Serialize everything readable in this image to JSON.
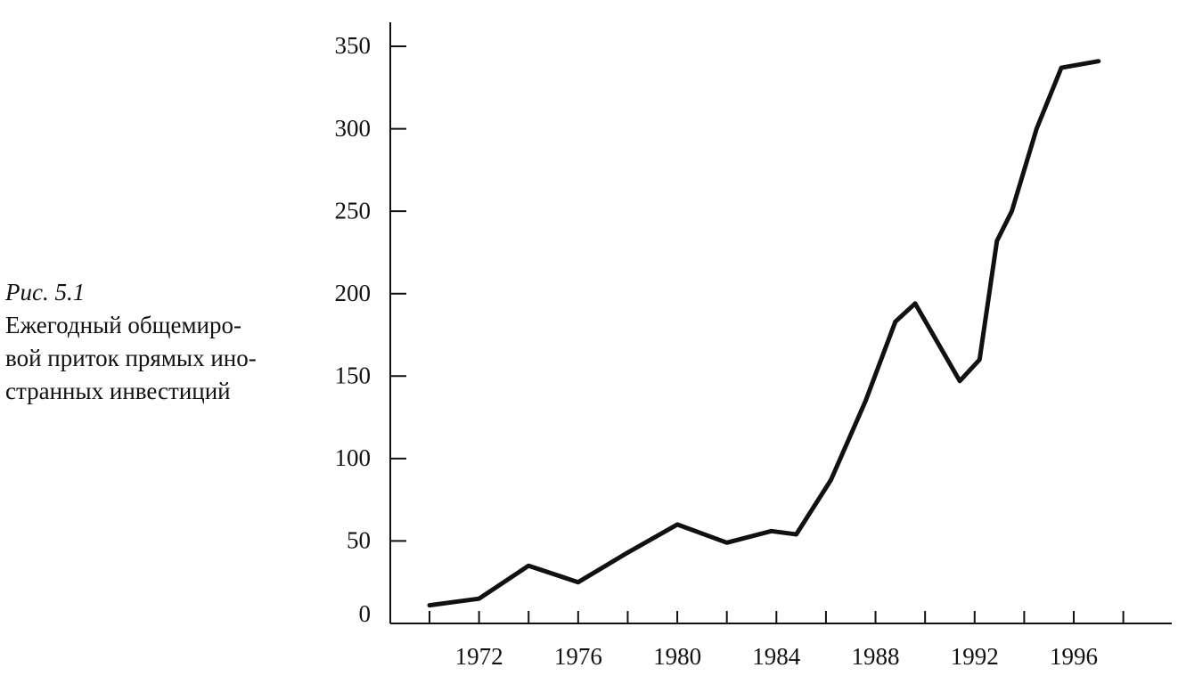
{
  "caption": {
    "figure": "Рис. 5.1",
    "lines": [
      "Ежегодный общемиро-",
      "вой приток прямых ино-",
      "странных инвестиций"
    ]
  },
  "chart_data": {
    "type": "line",
    "title": "",
    "xlabel": "",
    "ylabel": "",
    "xlim": [
      1969.5,
      1999
    ],
    "ylim": [
      0,
      350
    ],
    "x_tick_labels": [
      "1972",
      "1976",
      "1980",
      "1984",
      "1988",
      "1992",
      "1996"
    ],
    "y_tick_labels": [
      "0",
      "50",
      "100",
      "150",
      "200",
      "250",
      "300",
      "350"
    ],
    "grid": false,
    "legend": "none",
    "series": [
      {
        "x": [
          1970,
          1972,
          1974,
          1976,
          1978,
          1980,
          1982,
          1983.8,
          1984.8,
          1986.2,
          1987.6,
          1988.8,
          1989.6,
          1991.4,
          1992.2,
          1992.9,
          1993.5,
          1994.5,
          1995.5,
          1997
        ],
        "y": [
          11,
          15,
          35,
          25,
          43,
          60,
          49,
          56,
          54,
          87,
          135,
          183,
          194,
          147,
          160,
          232,
          250,
          300,
          337,
          341
        ]
      }
    ],
    "line_color": "#111111"
  }
}
